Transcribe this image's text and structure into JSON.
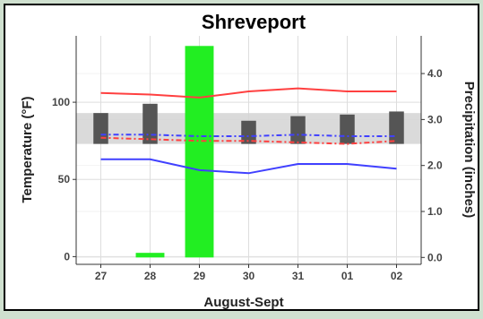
{
  "chart_data": {
    "type": "bar",
    "title": "Shreveport",
    "xlabel": "August-Sept",
    "ylabel": "Temperature (°F)",
    "y2label": "Precipitation (inches)",
    "categories": [
      "27",
      "28",
      "29",
      "30",
      "31",
      "01",
      "02"
    ],
    "ylim": [
      -5,
      143
    ],
    "yticks": [
      0,
      50,
      100
    ],
    "y2lim": [
      -0.15,
      4.82
    ],
    "y2ticks": [
      "0.0",
      "1.0",
      "2.0",
      "3.0",
      "4.0"
    ],
    "grid": true,
    "series": [
      {
        "kind": "precip_bars",
        "color": "#22ee22",
        "values": [
          0,
          0.1,
          4.6,
          0,
          0,
          0,
          0
        ]
      },
      {
        "kind": "observed_temp_range_bars",
        "color": "#555555",
        "low": [
          73,
          73,
          73,
          73,
          73,
          73,
          73
        ],
        "high": [
          93,
          99,
          80,
          88,
          91,
          92,
          94
        ]
      },
      {
        "kind": "normal_temp_band",
        "color": "#d3d3d3",
        "low": [
          73,
          73,
          73,
          73,
          73,
          73,
          73
        ],
        "high": [
          93,
          93,
          93,
          93,
          93,
          93,
          93
        ]
      },
      {
        "kind": "record_high_line",
        "color": "#ff4040",
        "values": [
          106,
          105,
          103,
          107,
          109,
          107,
          107
        ]
      },
      {
        "kind": "record_low_line",
        "color": "#4040ff",
        "values": [
          63,
          63,
          56,
          54,
          60,
          60,
          57
        ]
      },
      {
        "kind": "normal_high_dashed",
        "color": "#4040ff",
        "values": [
          79,
          79,
          78,
          78,
          79,
          78,
          78
        ]
      },
      {
        "kind": "normal_low_dashed",
        "color": "#ff4040",
        "values": [
          77,
          76,
          75,
          75,
          74,
          73,
          75
        ]
      }
    ]
  }
}
